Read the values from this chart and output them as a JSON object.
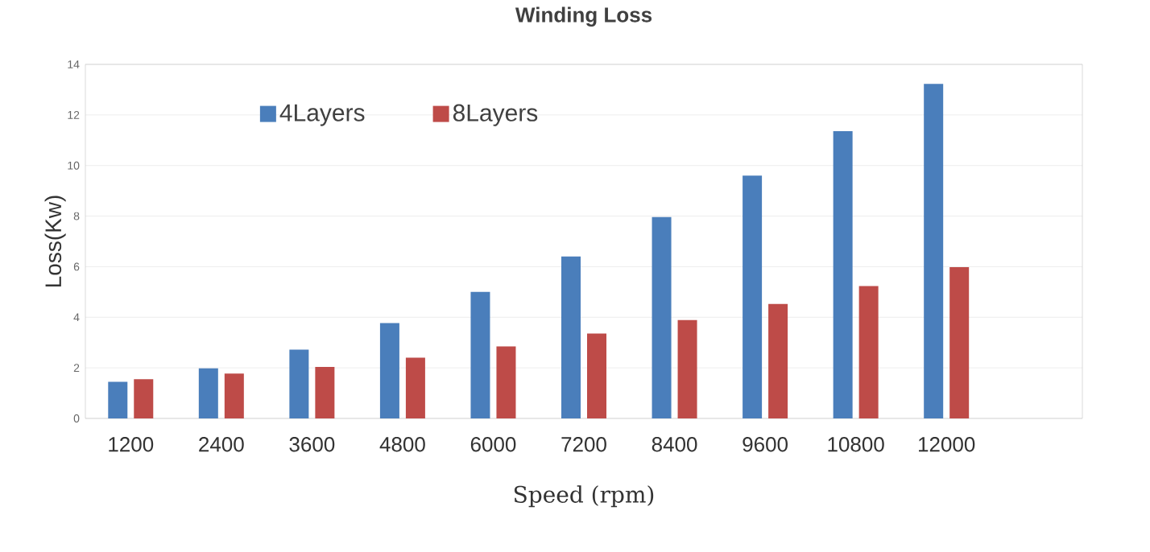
{
  "chart_data": {
    "type": "bar",
    "title": "Winding Loss",
    "xlabel": "Speed (rpm)",
    "ylabel": "Loss(Kw)",
    "categories": [
      "1200",
      "2400",
      "3600",
      "4800",
      "6000",
      "7200",
      "8400",
      "9600",
      "10800",
      "12000",
      null
    ],
    "series": [
      {
        "name": "4Layers",
        "color": "#4a7ebb",
        "values": [
          1.45,
          1.98,
          2.72,
          3.77,
          5.0,
          6.4,
          7.96,
          9.6,
          11.36,
          13.23,
          null
        ]
      },
      {
        "name": "8Layers",
        "color": "#be4b48",
        "values": [
          1.55,
          1.77,
          2.04,
          2.4,
          2.85,
          3.36,
          3.89,
          4.53,
          5.23,
          5.98,
          null
        ]
      }
    ],
    "ylim": [
      0,
      14
    ],
    "yticks": [
      0,
      2,
      4,
      6,
      8,
      10,
      12,
      14
    ],
    "grid": "y",
    "legend": "top left"
  }
}
